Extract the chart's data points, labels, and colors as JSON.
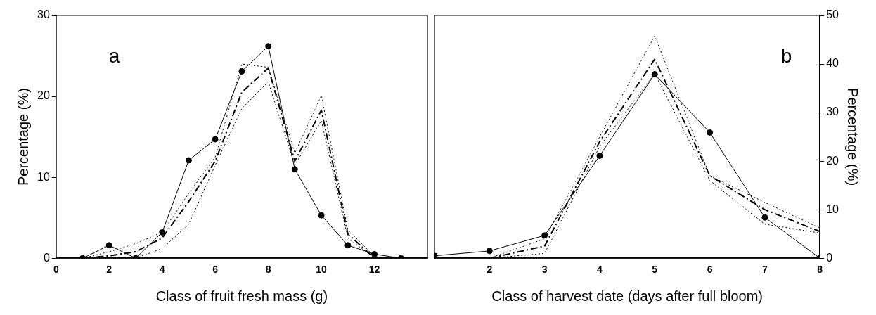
{
  "chart_data": [
    {
      "type": "line",
      "xlabel": "Class of fruit fresh mass (g)",
      "ylabel": "Percentage (%)",
      "annotations": [
        "a"
      ],
      "xlim": [
        0,
        14
      ],
      "xticks": [
        0,
        2,
        4,
        6,
        8,
        10,
        12
      ],
      "ylim": [
        0,
        30
      ],
      "yticks": [
        0,
        10,
        20,
        30
      ],
      "grid": false,
      "legend": false,
      "x": [
        1,
        2,
        3,
        4,
        5,
        6,
        7,
        8,
        9,
        10,
        11,
        12,
        13
      ],
      "series": [
        {
          "color": "#000000",
          "marker": "circle",
          "line_style": "solid",
          "values": [
            0,
            1.6,
            0,
            3.2,
            12.1,
            14.7,
            23.1,
            26.2,
            11.0,
            5.3,
            1.6,
            0.5,
            0
          ]
        },
        {
          "color": "#000000",
          "marker": "none",
          "line_style": "dashed",
          "values": [
            0,
            0.3,
            0.8,
            2.5,
            7,
            12,
            20.5,
            23.5,
            12,
            18.3,
            3,
            0,
            0
          ]
        },
        {
          "color": "#000000",
          "marker": "none",
          "line_style": "dotted",
          "values": [
            0,
            0.8,
            1.8,
            3.2,
            8,
            12.5,
            24,
            23.6,
            13,
            20.1,
            3.5,
            0.2,
            0
          ]
        },
        {
          "color": "#000000",
          "marker": "none",
          "line_style": "dotted",
          "values": [
            0,
            0,
            0,
            1.2,
            4.2,
            11.5,
            18.5,
            21.8,
            11.5,
            17,
            2.5,
            0,
            0
          ]
        }
      ]
    },
    {
      "type": "line",
      "xlabel": "Class of harvest date (days after full bloom)",
      "ylabel": "Percentage (%)",
      "annotations": [
        "b"
      ],
      "xlim": [
        1,
        8
      ],
      "xticks": [
        2,
        3,
        4,
        5,
        6,
        7,
        8
      ],
      "ylim": [
        0,
        50
      ],
      "yticks": [
        0,
        10,
        20,
        30,
        40,
        50
      ],
      "grid": false,
      "legend": false,
      "x": [
        1,
        2,
        3,
        4,
        5,
        6,
        7,
        8
      ],
      "series": [
        {
          "color": "#000000",
          "marker": "circle",
          "line_style": "solid",
          "values": [
            0.5,
            1.5,
            4.7,
            21.1,
            37.9,
            25.9,
            8.4,
            0
          ]
        },
        {
          "color": "#000000",
          "marker": "none",
          "line_style": "dashed",
          "x": [
            2,
            3,
            4,
            5,
            6,
            7,
            8
          ],
          "values": [
            0,
            2.5,
            24,
            41,
            17,
            10,
            5.5
          ]
        },
        {
          "color": "#000000",
          "marker": "none",
          "line_style": "dotted",
          "x": [
            2,
            3,
            4,
            5,
            6,
            7,
            8
          ],
          "values": [
            0,
            4,
            25,
            45.8,
            17,
            11.5,
            6.2
          ]
        },
        {
          "color": "#000000",
          "marker": "none",
          "line_style": "dotted",
          "x": [
            2,
            3,
            4,
            5,
            6,
            7,
            8
          ],
          "values": [
            0,
            1,
            23,
            38,
            16,
            7,
            5.2
          ]
        }
      ]
    }
  ]
}
